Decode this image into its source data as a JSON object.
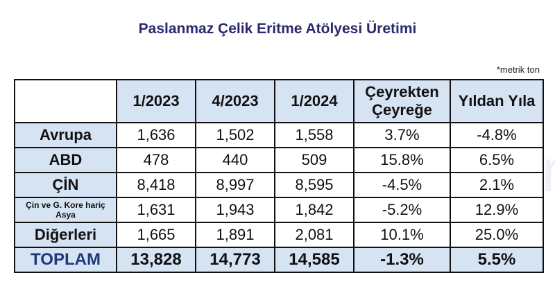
{
  "title": "Paslanmaz Çelik Eritme Atölyesi Üretimi",
  "unit_note": "*metrik ton",
  "watermark": "SteelRadar",
  "colors": {
    "title": "#2b2a6e",
    "header_fill": "#d5e3f3",
    "total_text": "#1f3a78"
  },
  "table": {
    "headers": [
      "",
      "1/2023",
      "4/2023",
      "1/2024",
      "Çeyrekten Çeyreğe",
      "Yıldan Yıla"
    ],
    "rows": [
      {
        "label": "Avrupa",
        "values": [
          "1,636",
          "1,502",
          "1,558",
          "3.7%",
          "-4.8%"
        ]
      },
      {
        "label": "ABD",
        "values": [
          "478",
          "440",
          "509",
          "15.8%",
          "6.5%"
        ]
      },
      {
        "label": "ÇİN",
        "values": [
          "8,418",
          "8,997",
          "8,595",
          "-4.5%",
          "2.1%"
        ]
      },
      {
        "label": "Çin ve G. Kore hariç Asya",
        "values": [
          "1,631",
          "1,943",
          "1,842",
          "-5.2%",
          "12.9%"
        ]
      },
      {
        "label": "Diğerleri",
        "values": [
          "1,665",
          "1,891",
          "2,081",
          "10.1%",
          "25.0%"
        ]
      }
    ],
    "total": {
      "label": "TOPLAM",
      "values": [
        "13,828",
        "14,773",
        "14,585",
        "-1.3%",
        "5.5%"
      ]
    }
  }
}
